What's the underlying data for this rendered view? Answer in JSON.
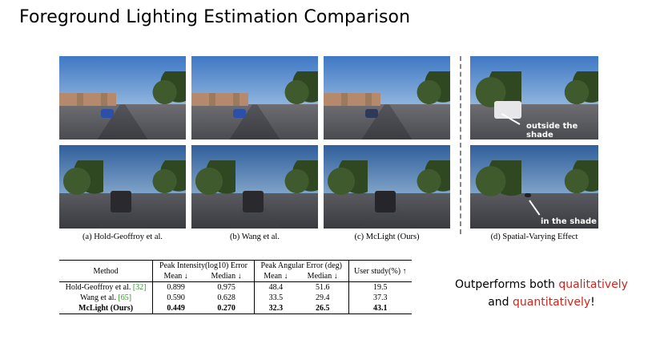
{
  "slide": {
    "title": "Foreground Lighting Estimation Comparison"
  },
  "figure": {
    "captions": {
      "a": "(a) Hold-Geoffroy et al.",
      "b": "(b) Wang et al.",
      "c": "(c) McLight (Ours)",
      "d": "(d) Spatial-Varying Effect"
    },
    "overlay_labels": {
      "top": "outside the shade",
      "bottom": "in the shade"
    }
  },
  "table": {
    "headers": {
      "method": "Method",
      "peak_intensity": "Peak Intensity(log10) Error",
      "peak_angular": "Peak Angular Error (deg)",
      "user_study": "User study(%) ↑",
      "mean": "Mean ↓",
      "median": "Median ↓"
    },
    "rows": [
      {
        "name": "Hold-Geoffroy et al. ",
        "ref": "[32]",
        "pi_mean": "0.899",
        "pi_median": "0.975",
        "pa_mean": "48.4",
        "pa_median": "51.6",
        "user": "19.5"
      },
      {
        "name": "Wang et al. ",
        "ref": "[65]",
        "pi_mean": "0.590",
        "pi_median": "0.628",
        "pa_mean": "33.5",
        "pa_median": "29.4",
        "user": "37.3"
      },
      {
        "name": "McLight (Ours)",
        "ref": "",
        "pi_mean": "0.449",
        "pi_median": "0.270",
        "pa_mean": "32.3",
        "pa_median": "26.5",
        "user": "43.1"
      }
    ]
  },
  "tagline": {
    "part1": "Outperforms both ",
    "red1": "qualitatively",
    "part2": "and ",
    "red2": "quantitatively",
    "part3": "!"
  }
}
